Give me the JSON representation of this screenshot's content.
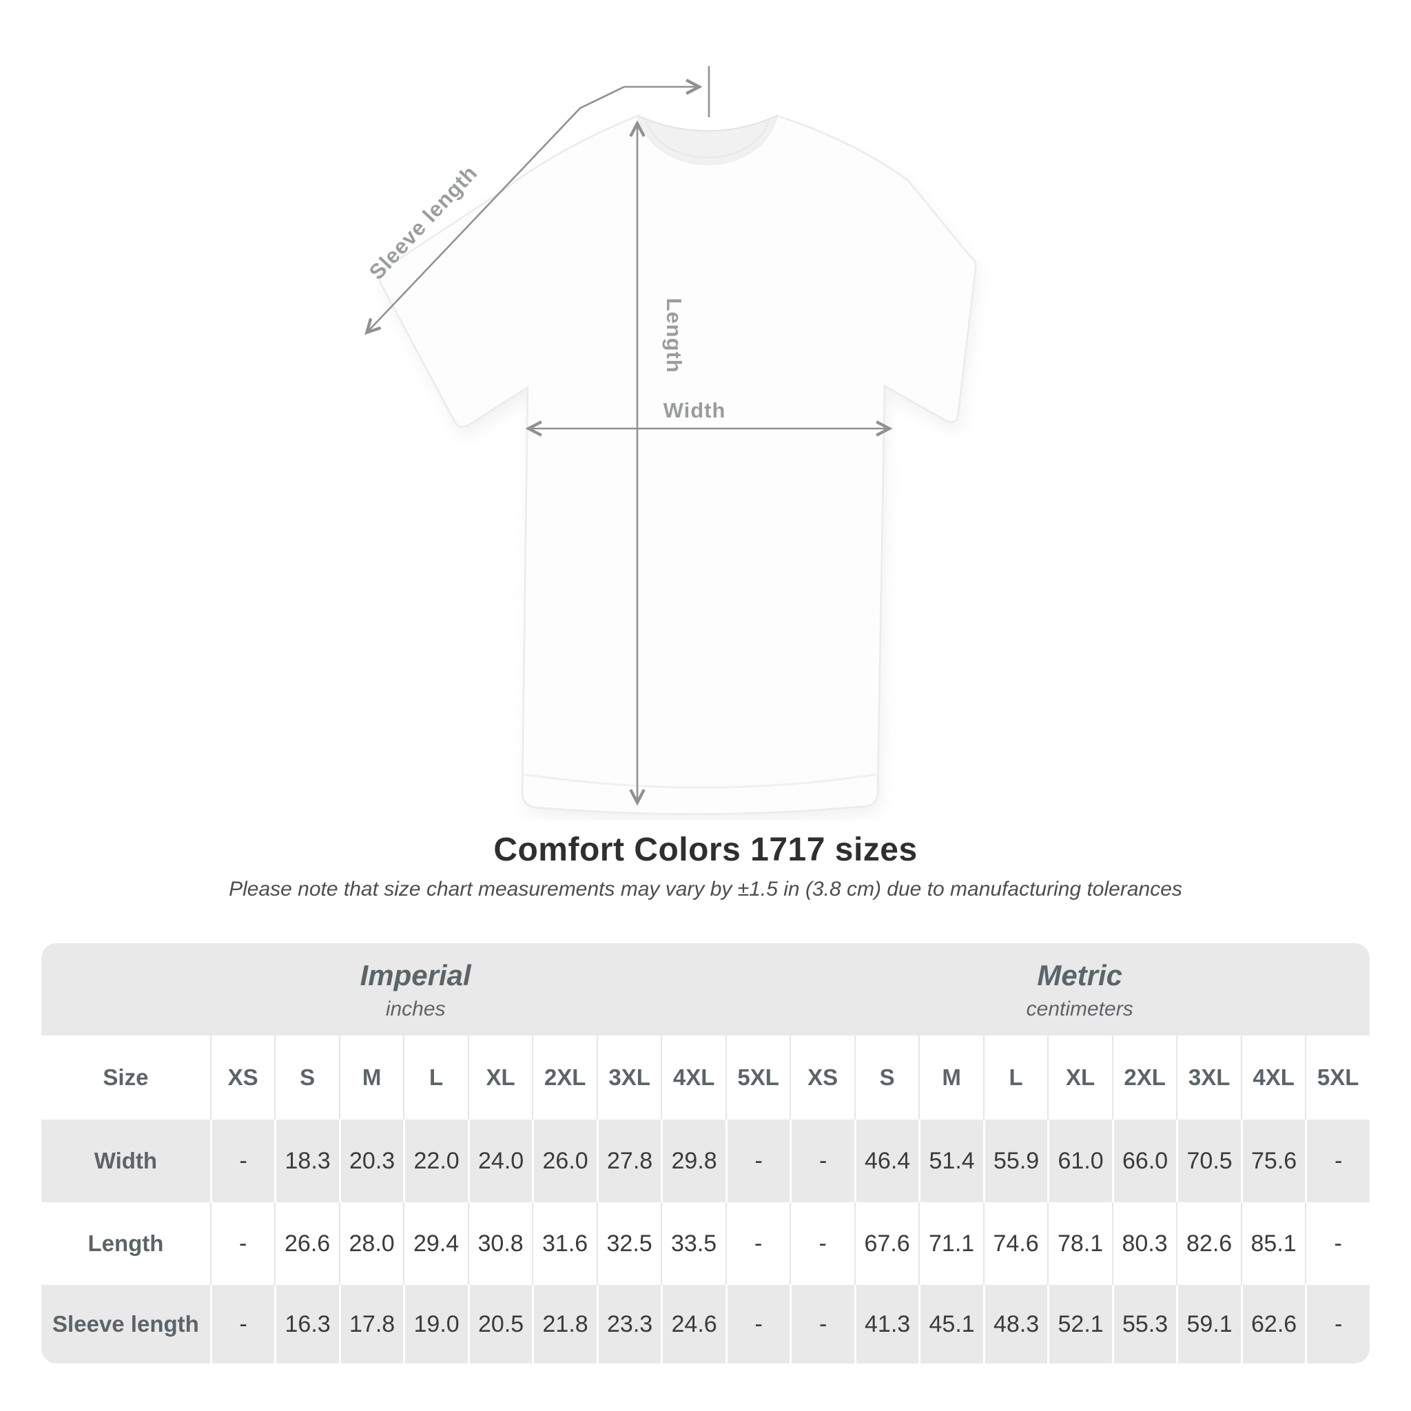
{
  "figure": {
    "labels": {
      "sleeve": "Sleeve length",
      "length": "Length",
      "width": "Width"
    }
  },
  "title": "Comfort Colors 1717 sizes",
  "subtitle": "Please note that size chart measurements may vary by ±1.5 in (3.8 cm) due to manufacturing tolerances",
  "table": {
    "section_headers": [
      {
        "label": "Imperial",
        "sublabel": "inches",
        "span": 10
      },
      {
        "label": "Metric",
        "sublabel": "centimeters",
        "span": 9
      }
    ],
    "size_header": "Size",
    "sizes": [
      "XS",
      "S",
      "M",
      "L",
      "XL",
      "2XL",
      "3XL",
      "4XL",
      "5XL"
    ],
    "rows": [
      {
        "label": "Width",
        "imperial": [
          "-",
          "18.3",
          "20.3",
          "22.0",
          "24.0",
          "26.0",
          "27.8",
          "29.8",
          "-"
        ],
        "metric": [
          "-",
          "46.4",
          "51.4",
          "55.9",
          "61.0",
          "66.0",
          "70.5",
          "75.6",
          "-"
        ]
      },
      {
        "label": "Length",
        "imperial": [
          "-",
          "26.6",
          "28.0",
          "29.4",
          "30.8",
          "31.6",
          "32.5",
          "33.5",
          "-"
        ],
        "metric": [
          "-",
          "67.6",
          "71.1",
          "74.6",
          "78.1",
          "80.3",
          "82.6",
          "85.1",
          "-"
        ]
      },
      {
        "label": "Sleeve length",
        "imperial": [
          "-",
          "16.3",
          "17.8",
          "19.0",
          "20.5",
          "21.8",
          "23.3",
          "24.6",
          "-"
        ],
        "metric": [
          "-",
          "41.3",
          "45.1",
          "48.3",
          "52.1",
          "55.3",
          "59.1",
          "62.6",
          "-"
        ]
      }
    ]
  },
  "colors": {
    "band_gray": "#e9e9e9",
    "header_text": "#5d6468",
    "value_text": "#3b3b3b",
    "annotation_gray": "#8f9193",
    "diagram_label_gray": "#9a9da0",
    "title_color": "#2f2f2f",
    "subtitle_color": "#4d4d4d",
    "separator_on_white": "#e6e6e6",
    "separator_on_gray": "#ffffff"
  }
}
